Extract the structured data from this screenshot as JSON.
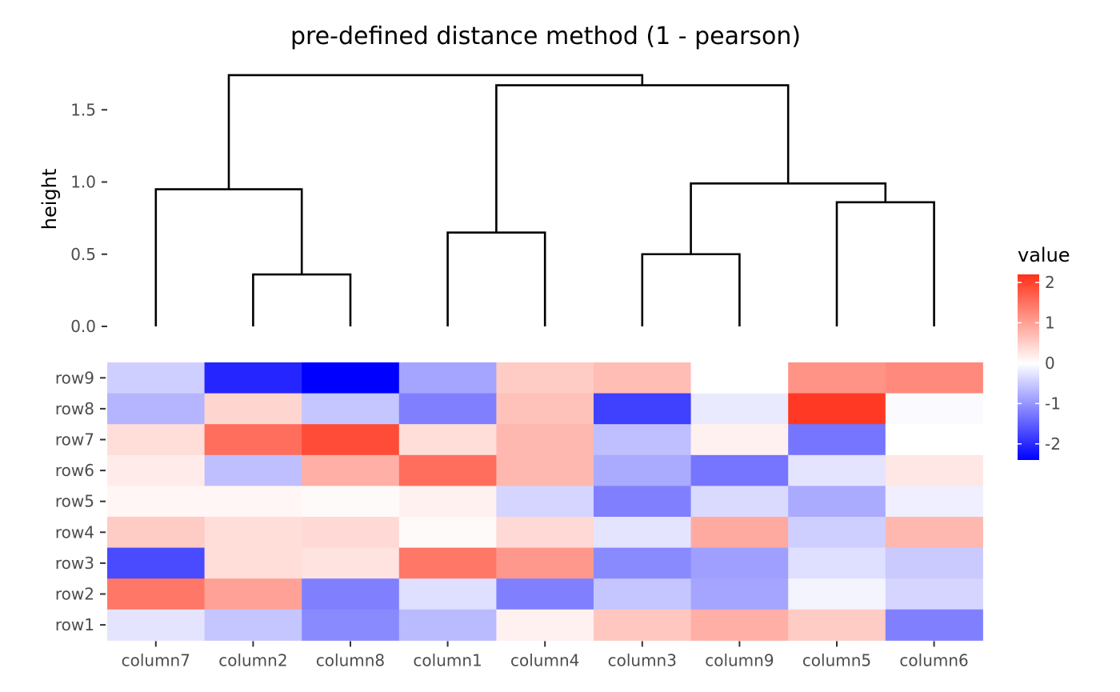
{
  "chart_data": {
    "type": "heatmap",
    "title": "pre-defined distance method (1 - pearson)",
    "columns": [
      "column7",
      "column2",
      "column8",
      "column1",
      "column4",
      "column3",
      "column9",
      "column5",
      "column6"
    ],
    "rows": [
      "row9",
      "row8",
      "row7",
      "row6",
      "row5",
      "row4",
      "row3",
      "row2",
      "row1"
    ],
    "values": [
      [
        -0.45,
        -2.05,
        -2.4,
        -0.85,
        0.55,
        0.7,
        0.0,
        1.15,
        1.25
      ],
      [
        -0.7,
        0.45,
        -0.55,
        -1.2,
        0.65,
        -1.8,
        -0.2,
        2.1,
        -0.05
      ],
      [
        0.35,
        1.55,
        1.9,
        0.35,
        0.75,
        -0.6,
        0.15,
        -1.3,
        0.0
      ],
      [
        0.2,
        -0.6,
        0.85,
        1.55,
        0.75,
        -0.8,
        -1.3,
        -0.25,
        0.25
      ],
      [
        0.1,
        0.1,
        0.05,
        0.15,
        -0.4,
        -1.2,
        -0.35,
        -0.8,
        -0.15
      ],
      [
        0.55,
        0.35,
        0.4,
        0.05,
        0.4,
        -0.25,
        0.9,
        -0.45,
        0.75
      ],
      [
        -1.7,
        0.35,
        0.3,
        1.45,
        1.1,
        -1.1,
        -0.9,
        -0.3,
        -0.5
      ],
      [
        1.45,
        1.0,
        -1.2,
        -0.3,
        -1.2,
        -0.55,
        -0.85,
        -0.1,
        -0.4
      ],
      [
        -0.25,
        -0.55,
        -1.1,
        -0.65,
        0.15,
        0.6,
        0.85,
        0.55,
        -1.2
      ]
    ],
    "dendrogram": {
      "ylabel": "height",
      "yticks": [
        "0.0",
        "0.5",
        "1.0",
        "1.5"
      ],
      "ylim": [
        0,
        1.75
      ],
      "merges": [
        {
          "left": [
            1,
            0
          ],
          "right": [
            2,
            0
          ],
          "height": 0.36
        },
        {
          "left": [
            0,
            0
          ],
          "right": [
            1.5,
            0.36
          ],
          "height": 0.95
        },
        {
          "left": [
            3,
            0
          ],
          "right": [
            4,
            0
          ],
          "height": 0.65
        },
        {
          "left": [
            5,
            0
          ],
          "right": [
            6,
            0
          ],
          "height": 0.5
        },
        {
          "left": [
            7,
            0
          ],
          "right": [
            8,
            0
          ],
          "height": 0.86
        },
        {
          "left": [
            5.5,
            0.5
          ],
          "right": [
            7.5,
            0.86
          ],
          "height": 0.99
        },
        {
          "left": [
            3.5,
            0.65
          ],
          "right": [
            6.5,
            0.99
          ],
          "height": 1.67
        },
        {
          "left": [
            0.75,
            0.95
          ],
          "right": [
            5,
            1.67
          ],
          "height": 1.74
        }
      ]
    },
    "legend": {
      "title": "value",
      "ticks": [
        "2",
        "1",
        "0",
        "-1",
        "-2"
      ],
      "range": [
        -2.4,
        2.2
      ],
      "colors": {
        "low": "#0000FF",
        "mid": "#FFFFFF",
        "high": "#FF3018"
      }
    }
  }
}
